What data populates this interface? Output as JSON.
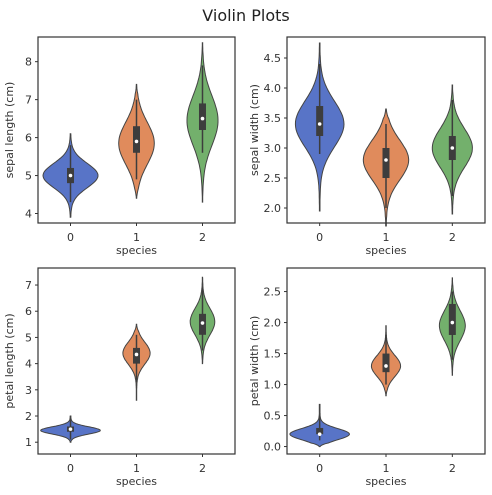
{
  "figure_title": "Violin Plots",
  "colors": [
    "#5874c7",
    "#e08b5c",
    "#73b06c"
  ],
  "chart_data": [
    {
      "type": "violin",
      "xlabel": "species",
      "ylabel": "sepal length (cm)",
      "categories": [
        "0",
        "1",
        "2"
      ],
      "ylim": [
        3.75,
        8.65
      ],
      "yticks": [
        "4",
        "5",
        "6",
        "7",
        "8"
      ],
      "violins": [
        {
          "range": [
            3.9,
            6.1
          ],
          "q1": 4.8,
          "median": 5.0,
          "q3": 5.2,
          "whisk": [
            4.3,
            5.8
          ],
          "peak": 5.0,
          "width": 0.85,
          "spread": 0.32
        },
        {
          "range": [
            4.4,
            7.4
          ],
          "q1": 5.6,
          "median": 5.9,
          "q3": 6.3,
          "whisk": [
            4.9,
            7.0
          ],
          "peak": 5.85,
          "width": 0.55,
          "spread": 0.55
        },
        {
          "range": [
            4.3,
            8.5
          ],
          "q1": 6.2,
          "median": 6.5,
          "q3": 6.9,
          "whisk": [
            5.6,
            7.9
          ],
          "peak": 6.45,
          "width": 0.48,
          "spread": 0.65
        }
      ]
    },
    {
      "type": "violin",
      "xlabel": "species",
      "ylabel": "sepal width (cm)",
      "categories": [
        "0",
        "1",
        "2"
      ],
      "ylim": [
        1.75,
        4.85
      ],
      "yticks": [
        "2.0",
        "2.5",
        "3.0",
        "3.5",
        "4.0",
        "4.5"
      ],
      "violins": [
        {
          "range": [
            1.95,
            4.75
          ],
          "q1": 3.2,
          "median": 3.4,
          "q3": 3.7,
          "whisk": [
            2.9,
            4.4
          ],
          "peak": 3.4,
          "width": 0.75,
          "spread": 0.38
        },
        {
          "range": [
            1.7,
            3.65
          ],
          "q1": 2.5,
          "median": 2.8,
          "q3": 3.0,
          "whisk": [
            2.0,
            3.4
          ],
          "peak": 2.8,
          "width": 0.7,
          "spread": 0.33
        },
        {
          "range": [
            1.9,
            4.05
          ],
          "q1": 2.8,
          "median": 3.0,
          "q3": 3.2,
          "whisk": [
            2.2,
            3.8
          ],
          "peak": 3.0,
          "width": 0.62,
          "spread": 0.32
        }
      ]
    },
    {
      "type": "violin",
      "xlabel": "species",
      "ylabel": "petal length (cm)",
      "categories": [
        "0",
        "1",
        "2"
      ],
      "ylim": [
        0.55,
        7.65
      ],
      "yticks": [
        "1",
        "2",
        "3",
        "4",
        "5",
        "6",
        "7"
      ],
      "violins": [
        {
          "range": [
            1.0,
            2.0
          ],
          "q1": 1.4,
          "median": 1.5,
          "q3": 1.6,
          "whisk": [
            1.1,
            1.9
          ],
          "peak": 1.45,
          "width": 0.92,
          "spread": 0.14
        },
        {
          "range": [
            2.6,
            5.5
          ],
          "q1": 4.0,
          "median": 4.35,
          "q3": 4.6,
          "whisk": [
            3.3,
            5.1
          ],
          "peak": 4.4,
          "width": 0.42,
          "spread": 0.42
        },
        {
          "range": [
            4.0,
            7.3
          ],
          "q1": 5.1,
          "median": 5.55,
          "q3": 5.9,
          "whisk": [
            4.5,
            6.9
          ],
          "peak": 5.6,
          "width": 0.38,
          "spread": 0.5
        }
      ]
    },
    {
      "type": "violin",
      "xlabel": "species",
      "ylabel": "petal width (cm)",
      "categories": [
        "0",
        "1",
        "2"
      ],
      "ylim": [
        -0.12,
        2.88
      ],
      "yticks": [
        "0.0",
        "0.5",
        "1.0",
        "1.5",
        "2.0",
        "2.5"
      ],
      "violins": [
        {
          "range": [
            0.0,
            0.68
          ],
          "q1": 0.2,
          "median": 0.2,
          "q3": 0.3,
          "whisk": [
            0.1,
            0.5
          ],
          "peak": 0.2,
          "width": 0.92,
          "spread": 0.09
        },
        {
          "range": [
            0.82,
            1.95
          ],
          "q1": 1.2,
          "median": 1.3,
          "q3": 1.5,
          "whisk": [
            1.0,
            1.8
          ],
          "peak": 1.3,
          "width": 0.45,
          "spread": 0.17
        },
        {
          "range": [
            1.15,
            2.72
          ],
          "q1": 1.8,
          "median": 2.0,
          "q3": 2.3,
          "whisk": [
            1.4,
            2.5
          ],
          "peak": 1.95,
          "width": 0.4,
          "spread": 0.24
        }
      ]
    }
  ]
}
